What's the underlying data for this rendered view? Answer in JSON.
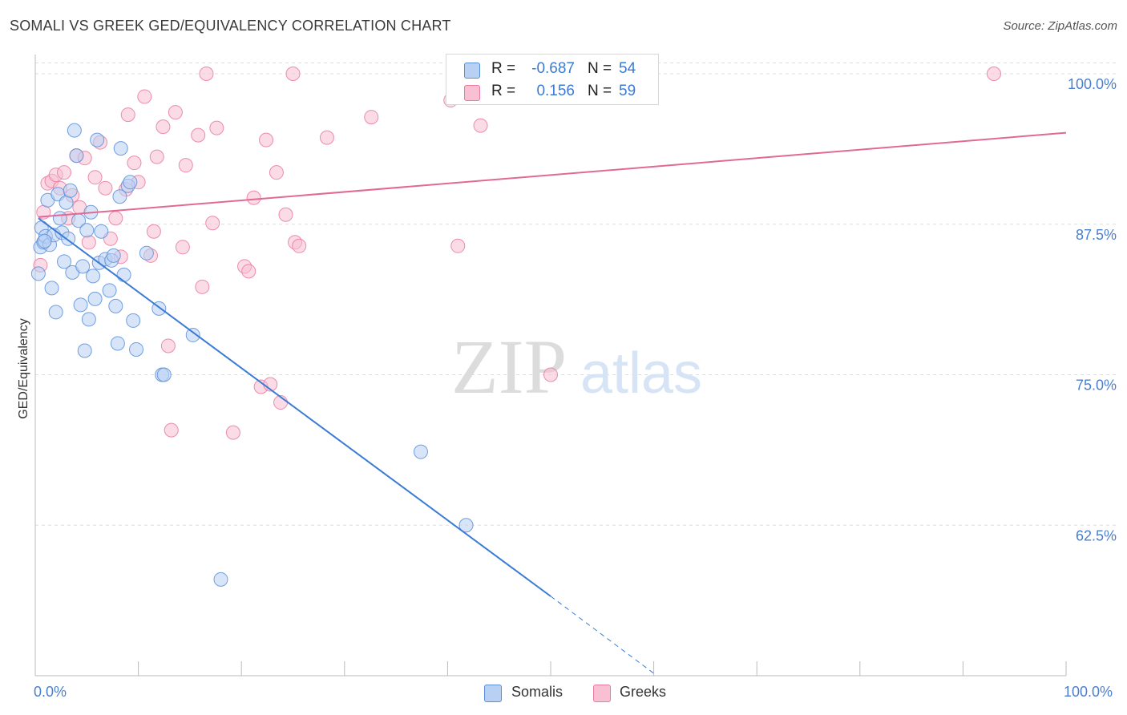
{
  "title": "SOMALI VS GREEK GED/EQUIVALENCY CORRELATION CHART",
  "source": "Source: ZipAtlas.com",
  "watermark": {
    "zip": "ZIP",
    "atlas": "atlas"
  },
  "colors": {
    "blue": "#5b8fd9",
    "blue_fill": "#b8d0f4",
    "blue_line": "#3a7bd5",
    "pink": "#e97aa0",
    "pink_fill": "#f8c0d2",
    "pink_line": "#e06a95",
    "axis_text": "#4a7fd0",
    "grid": "#dddddd"
  },
  "legend_top": {
    "rows": [
      {
        "r_label": "R =",
        "r_value": "-0.687",
        "n_label": "N =",
        "n_value": "54"
      },
      {
        "r_label": "R =",
        "r_value": "0.156",
        "n_label": "N =",
        "n_value": "59"
      }
    ]
  },
  "legend_bottom": [
    "Somalis",
    "Greeks"
  ],
  "chart_data": {
    "type": "scatter",
    "title": "SOMALI VS GREEK GED/EQUIVALENCY CORRELATION CHART",
    "xlabel": "",
    "ylabel": "GED/Equivalency",
    "xlim": [
      0,
      100
    ],
    "ylim": [
      50,
      101
    ],
    "x_tick_labels": [
      "0.0%",
      "100.0%"
    ],
    "y_ticks": [
      62.5,
      75.0,
      87.5,
      100.0
    ],
    "y_tick_labels": [
      "62.5%",
      "75.0%",
      "87.5%",
      "100.0%"
    ],
    "grid": true,
    "legend_placement": "bottom",
    "series": [
      {
        "name": "Somalis",
        "r": -0.687,
        "n": 54,
        "trend": {
          "x1": 0.3,
          "y1": 88.0,
          "x2": 50,
          "y2": 56.6,
          "dash_to_x": 60,
          "dash_to_y": 50.2
        },
        "points": [
          [
            0.3,
            83.4
          ],
          [
            0.5,
            85.6
          ],
          [
            0.6,
            87.2
          ],
          [
            0.8,
            86.0
          ],
          [
            1.0,
            86.5
          ],
          [
            1.2,
            89.5
          ],
          [
            1.4,
            85.8
          ],
          [
            1.6,
            82.2
          ],
          [
            1.8,
            86.6
          ],
          [
            2.0,
            80.2
          ],
          [
            2.2,
            90.0
          ],
          [
            2.4,
            88.0
          ],
          [
            2.6,
            86.8
          ],
          [
            2.8,
            84.4
          ],
          [
            3.0,
            89.3
          ],
          [
            3.2,
            86.3
          ],
          [
            3.4,
            90.3
          ],
          [
            3.6,
            83.5
          ],
          [
            3.8,
            95.3
          ],
          [
            4.0,
            93.2
          ],
          [
            4.2,
            87.8
          ],
          [
            4.4,
            80.8
          ],
          [
            4.6,
            84.0
          ],
          [
            4.8,
            77.0
          ],
          [
            5.0,
            87.0
          ],
          [
            5.2,
            79.6
          ],
          [
            5.4,
            88.5
          ],
          [
            5.6,
            83.2
          ],
          [
            5.8,
            81.3
          ],
          [
            6.0,
            94.5
          ],
          [
            6.2,
            84.3
          ],
          [
            6.4,
            86.9
          ],
          [
            6.8,
            84.6
          ],
          [
            7.2,
            82.0
          ],
          [
            7.4,
            84.5
          ],
          [
            7.6,
            84.9
          ],
          [
            7.8,
            80.7
          ],
          [
            8.0,
            77.6
          ],
          [
            8.2,
            89.8
          ],
          [
            8.3,
            93.8
          ],
          [
            8.6,
            83.3
          ],
          [
            9.0,
            90.7
          ],
          [
            9.2,
            91.0
          ],
          [
            9.5,
            79.5
          ],
          [
            9.8,
            77.1
          ],
          [
            10.8,
            85.1
          ],
          [
            12.0,
            80.5
          ],
          [
            12.3,
            75.0
          ],
          [
            12.5,
            75.0
          ],
          [
            15.3,
            78.3
          ],
          [
            18.0,
            58.0
          ],
          [
            37.4,
            68.6
          ],
          [
            41.8,
            62.5
          ],
          [
            0.9,
            86.1
          ]
        ]
      },
      {
        "name": "Greeks",
        "r": 0.156,
        "n": 59,
        "trend": {
          "x1": 0.3,
          "y1": 88.1,
          "x2": 100,
          "y2": 95.1
        },
        "points": [
          [
            0.5,
            84.1
          ],
          [
            0.8,
            88.5
          ],
          [
            1.2,
            90.9
          ],
          [
            1.6,
            91.1
          ],
          [
            2.0,
            91.6
          ],
          [
            2.4,
            90.5
          ],
          [
            2.8,
            91.8
          ],
          [
            3.2,
            88.0
          ],
          [
            3.6,
            89.9
          ],
          [
            4.0,
            93.2
          ],
          [
            4.3,
            88.9
          ],
          [
            4.8,
            93.0
          ],
          [
            5.2,
            86.0
          ],
          [
            5.8,
            91.4
          ],
          [
            6.3,
            94.3
          ],
          [
            6.8,
            90.5
          ],
          [
            7.3,
            86.3
          ],
          [
            7.8,
            88.0
          ],
          [
            8.3,
            84.8
          ],
          [
            8.8,
            90.4
          ],
          [
            9.0,
            96.6
          ],
          [
            9.6,
            92.6
          ],
          [
            10.0,
            91.0
          ],
          [
            10.6,
            98.1
          ],
          [
            11.2,
            84.9
          ],
          [
            11.5,
            86.9
          ],
          [
            11.8,
            93.1
          ],
          [
            12.4,
            95.6
          ],
          [
            12.9,
            77.4
          ],
          [
            13.2,
            70.4
          ],
          [
            13.6,
            96.8
          ],
          [
            14.3,
            85.6
          ],
          [
            14.6,
            92.4
          ],
          [
            15.8,
            94.9
          ],
          [
            16.2,
            82.3
          ],
          [
            16.6,
            100.0
          ],
          [
            17.2,
            87.6
          ],
          [
            17.6,
            95.5
          ],
          [
            19.2,
            70.2
          ],
          [
            20.3,
            84.0
          ],
          [
            20.7,
            83.6
          ],
          [
            21.2,
            89.7
          ],
          [
            21.9,
            74.0
          ],
          [
            22.4,
            94.5
          ],
          [
            22.8,
            74.2
          ],
          [
            23.4,
            91.8
          ],
          [
            23.8,
            72.7
          ],
          [
            24.3,
            88.3
          ],
          [
            25.2,
            86.0
          ],
          [
            25.6,
            85.7
          ],
          [
            25.0,
            100.0
          ],
          [
            28.3,
            94.7
          ],
          [
            32.6,
            96.4
          ],
          [
            40.3,
            97.8
          ],
          [
            41.0,
            85.7
          ],
          [
            43.2,
            95.7
          ],
          [
            50.0,
            75.0
          ],
          [
            56.8,
            100.0
          ],
          [
            93.0,
            100.0
          ]
        ]
      }
    ]
  }
}
